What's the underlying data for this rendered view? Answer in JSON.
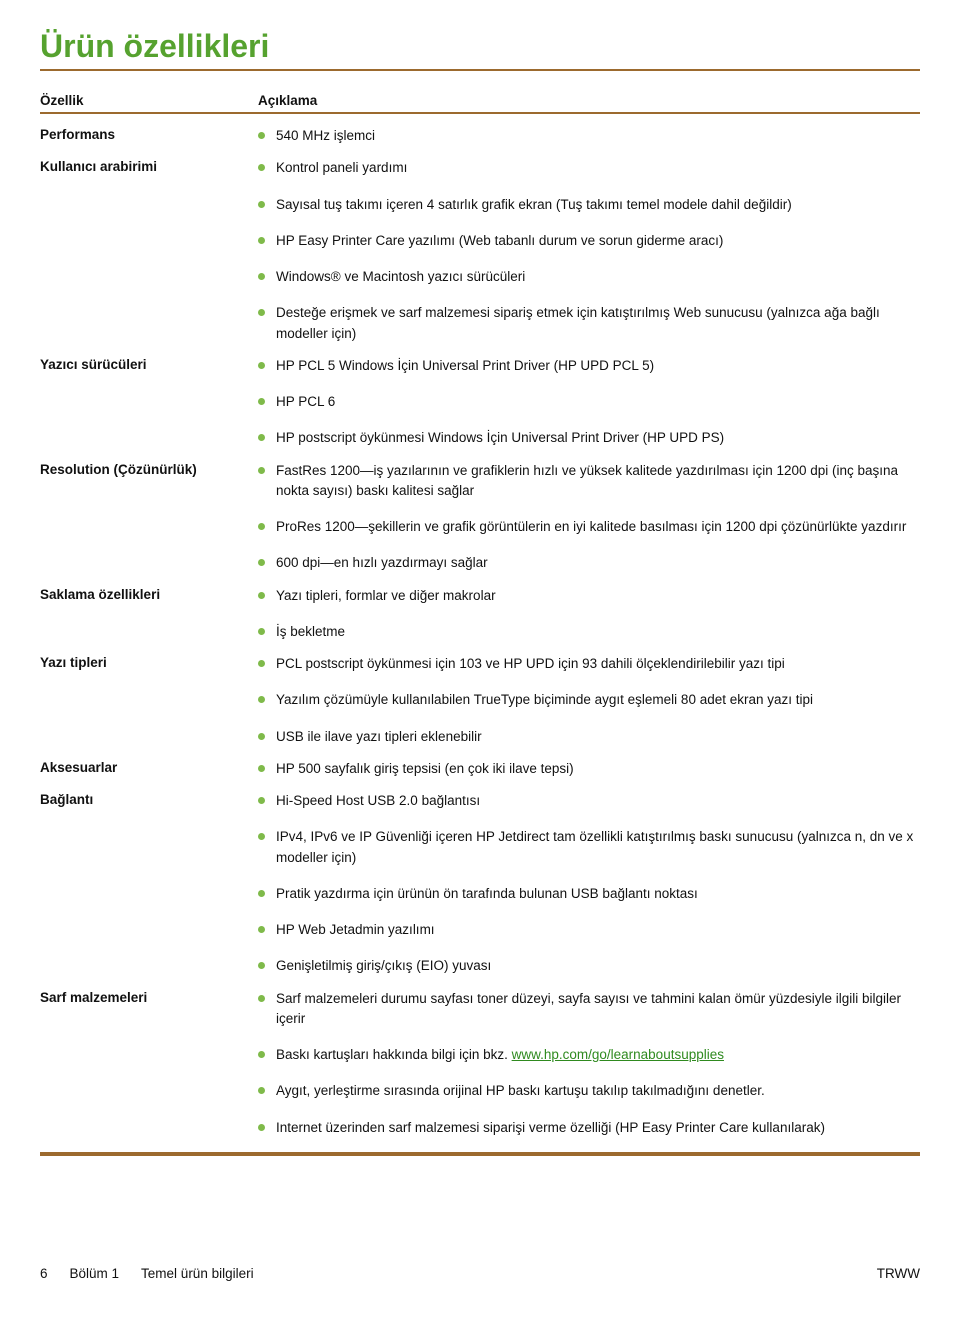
{
  "colors": {
    "accent_green": "#56a22f",
    "bullet_green": "#7fba4a",
    "rule_brown": "#9c6a2e",
    "link_green": "#2f8a1f"
  },
  "title": "Ürün özellikleri",
  "header": {
    "col1": "Özellik",
    "col2": "Açıklama"
  },
  "rows": [
    {
      "label": "Performans",
      "items": [
        "540 MHz işlemci"
      ]
    },
    {
      "label": "Kullanıcı arabirimi",
      "items": [
        "Kontrol paneli yardımı",
        "Sayısal tuş takımı içeren 4 satırlık grafik ekran (Tuş takımı temel modele dahil değildir)",
        "HP Easy Printer Care yazılımı (Web tabanlı durum ve sorun giderme aracı)",
        "Windows® ve Macintosh yazıcı sürücüleri",
        "Desteğe erişmek ve sarf malzemesi sipariş etmek için katıştırılmış Web sunucusu (yalnızca ağa bağlı modeller için)"
      ]
    },
    {
      "label": "Yazıcı sürücüleri",
      "items": [
        "HP PCL 5 Windows İçin Universal Print Driver (HP UPD PCL 5)",
        "HP PCL 6",
        "HP postscript öykünmesi Windows İçin Universal Print Driver (HP UPD PS)"
      ]
    },
    {
      "label": "Resolution (Çözünürlük)",
      "items": [
        "FastRes 1200—iş yazılarının ve grafiklerin hızlı ve yüksek kalitede yazdırılması için 1200 dpi (inç başına nokta sayısı) baskı kalitesi sağlar",
        "ProRes 1200—şekillerin ve grafik görüntülerin en iyi kalitede basılması için 1200 dpi çözünürlükte yazdırır",
        "600 dpi—en hızlı yazdırmayı sağlar"
      ]
    },
    {
      "label": "Saklama özellikleri",
      "items": [
        "Yazı tipleri, formlar ve diğer makrolar",
        "İş bekletme"
      ]
    },
    {
      "label": "Yazı tipleri",
      "items": [
        "PCL postscript öykünmesi için 103 ve HP UPD için 93 dahili ölçeklendirilebilir yazı tipi",
        "Yazılım çözümüyle kullanılabilen TrueType biçiminde aygıt eşlemeli 80 adet ekran yazı tipi",
        "USB ile ilave yazı tipleri eklenebilir"
      ]
    },
    {
      "label": "Aksesuarlar",
      "items": [
        "HP 500 sayfalık giriş tepsisi (en çok iki ilave tepsi)"
      ]
    },
    {
      "label": "Bağlantı",
      "items": [
        "Hi-Speed Host USB 2.0 bağlantısı",
        "IPv4, IPv6 ve IP Güvenliği içeren HP Jetdirect tam özellikli katıştırılmış baskı sunucusu (yalnızca n, dn ve x modeller için)",
        "Pratik yazdırma için ürünün ön tarafında bulunan USB bağlantı noktası",
        "HP Web Jetadmin yazılımı",
        "Genişletilmiş giriş/çıkış (EIO) yuvası"
      ]
    },
    {
      "label": "Sarf malzemeleri",
      "items": [
        "Sarf malzemeleri durumu sayfası toner düzeyi, sayfa sayısı ve tahmini kalan ömür yüzdesiyle ilgili bilgiler içerir",
        {
          "pre": "Baskı kartuşları hakkında bilgi için bkz. ",
          "link_text": "www.hp.com/go/learnaboutsupplies",
          "post": ""
        },
        "Aygıt, yerleştirme sırasında orijinal HP baskı kartuşu takılıp takılmadığını denetler.",
        "Internet üzerinden sarf malzemesi siparişi verme özelliği (HP Easy Printer Care kullanılarak)"
      ]
    }
  ],
  "footer": {
    "page_number": "6",
    "chapter_label": "Bölüm 1",
    "chapter_title": "Temel ürün bilgileri",
    "right": "TRWW"
  }
}
